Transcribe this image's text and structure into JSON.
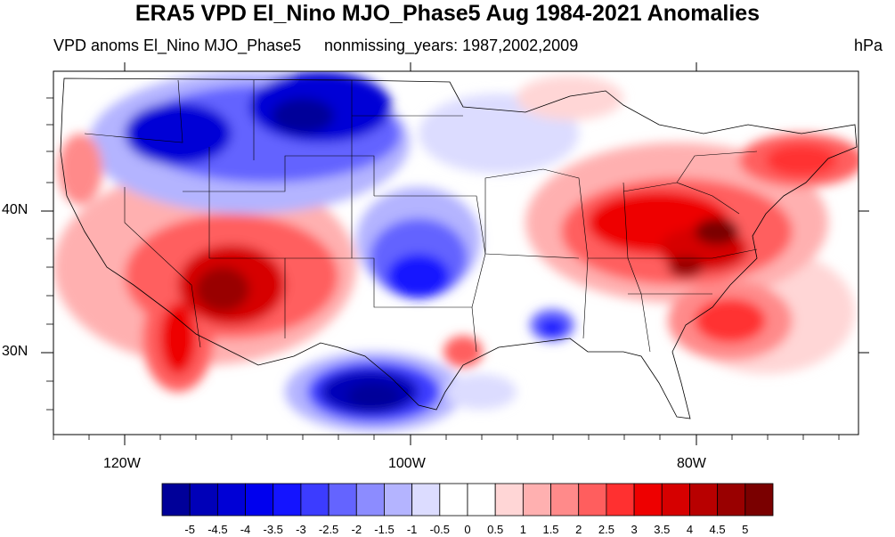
{
  "title": "ERA5 VPD El_Nino MJO_Phase5 Aug 1984-2021 Anomalies",
  "subtitle_left": "VPD anoms El_Nino MJO_Phase5",
  "subtitle_center": "nonmissing_years: 1987,2002,2009",
  "units": "hPa",
  "lat_labels": [
    "40N",
    "30N"
  ],
  "lon_labels": [
    "120W",
    "100W",
    "80W"
  ],
  "colorbar": {
    "labels": [
      "-5",
      "-4.5",
      "-4",
      "-3.5",
      "-3",
      "-2.5",
      "-2",
      "-1.5",
      "-1",
      "-0.5",
      "0",
      "0.5",
      "1",
      "1.5",
      "2",
      "2.5",
      "3",
      "3.5",
      "4",
      "4.5",
      "5"
    ],
    "colors": [
      "#000099",
      "#0000b8",
      "#0000d6",
      "#0000ee",
      "#1414ff",
      "#3c3cff",
      "#6464ff",
      "#8c8cff",
      "#b4b4ff",
      "#dcdcff",
      "#ffffff",
      "#ffffff",
      "#ffd6d6",
      "#ffb0b0",
      "#ff8a8a",
      "#ff5e5e",
      "#ff3030",
      "#ee0000",
      "#d60000",
      "#b80000",
      "#990000",
      "#7a0000"
    ]
  },
  "map_colors": {
    "strong_blue": "#0000c8",
    "mid_blue": "#3c3cff",
    "light_blue": "#b4b4ff",
    "strong_red": "#b00000",
    "mid_red": "#ff3030",
    "light_red": "#ffb0b0",
    "pale_red": "#ffd6d6"
  }
}
